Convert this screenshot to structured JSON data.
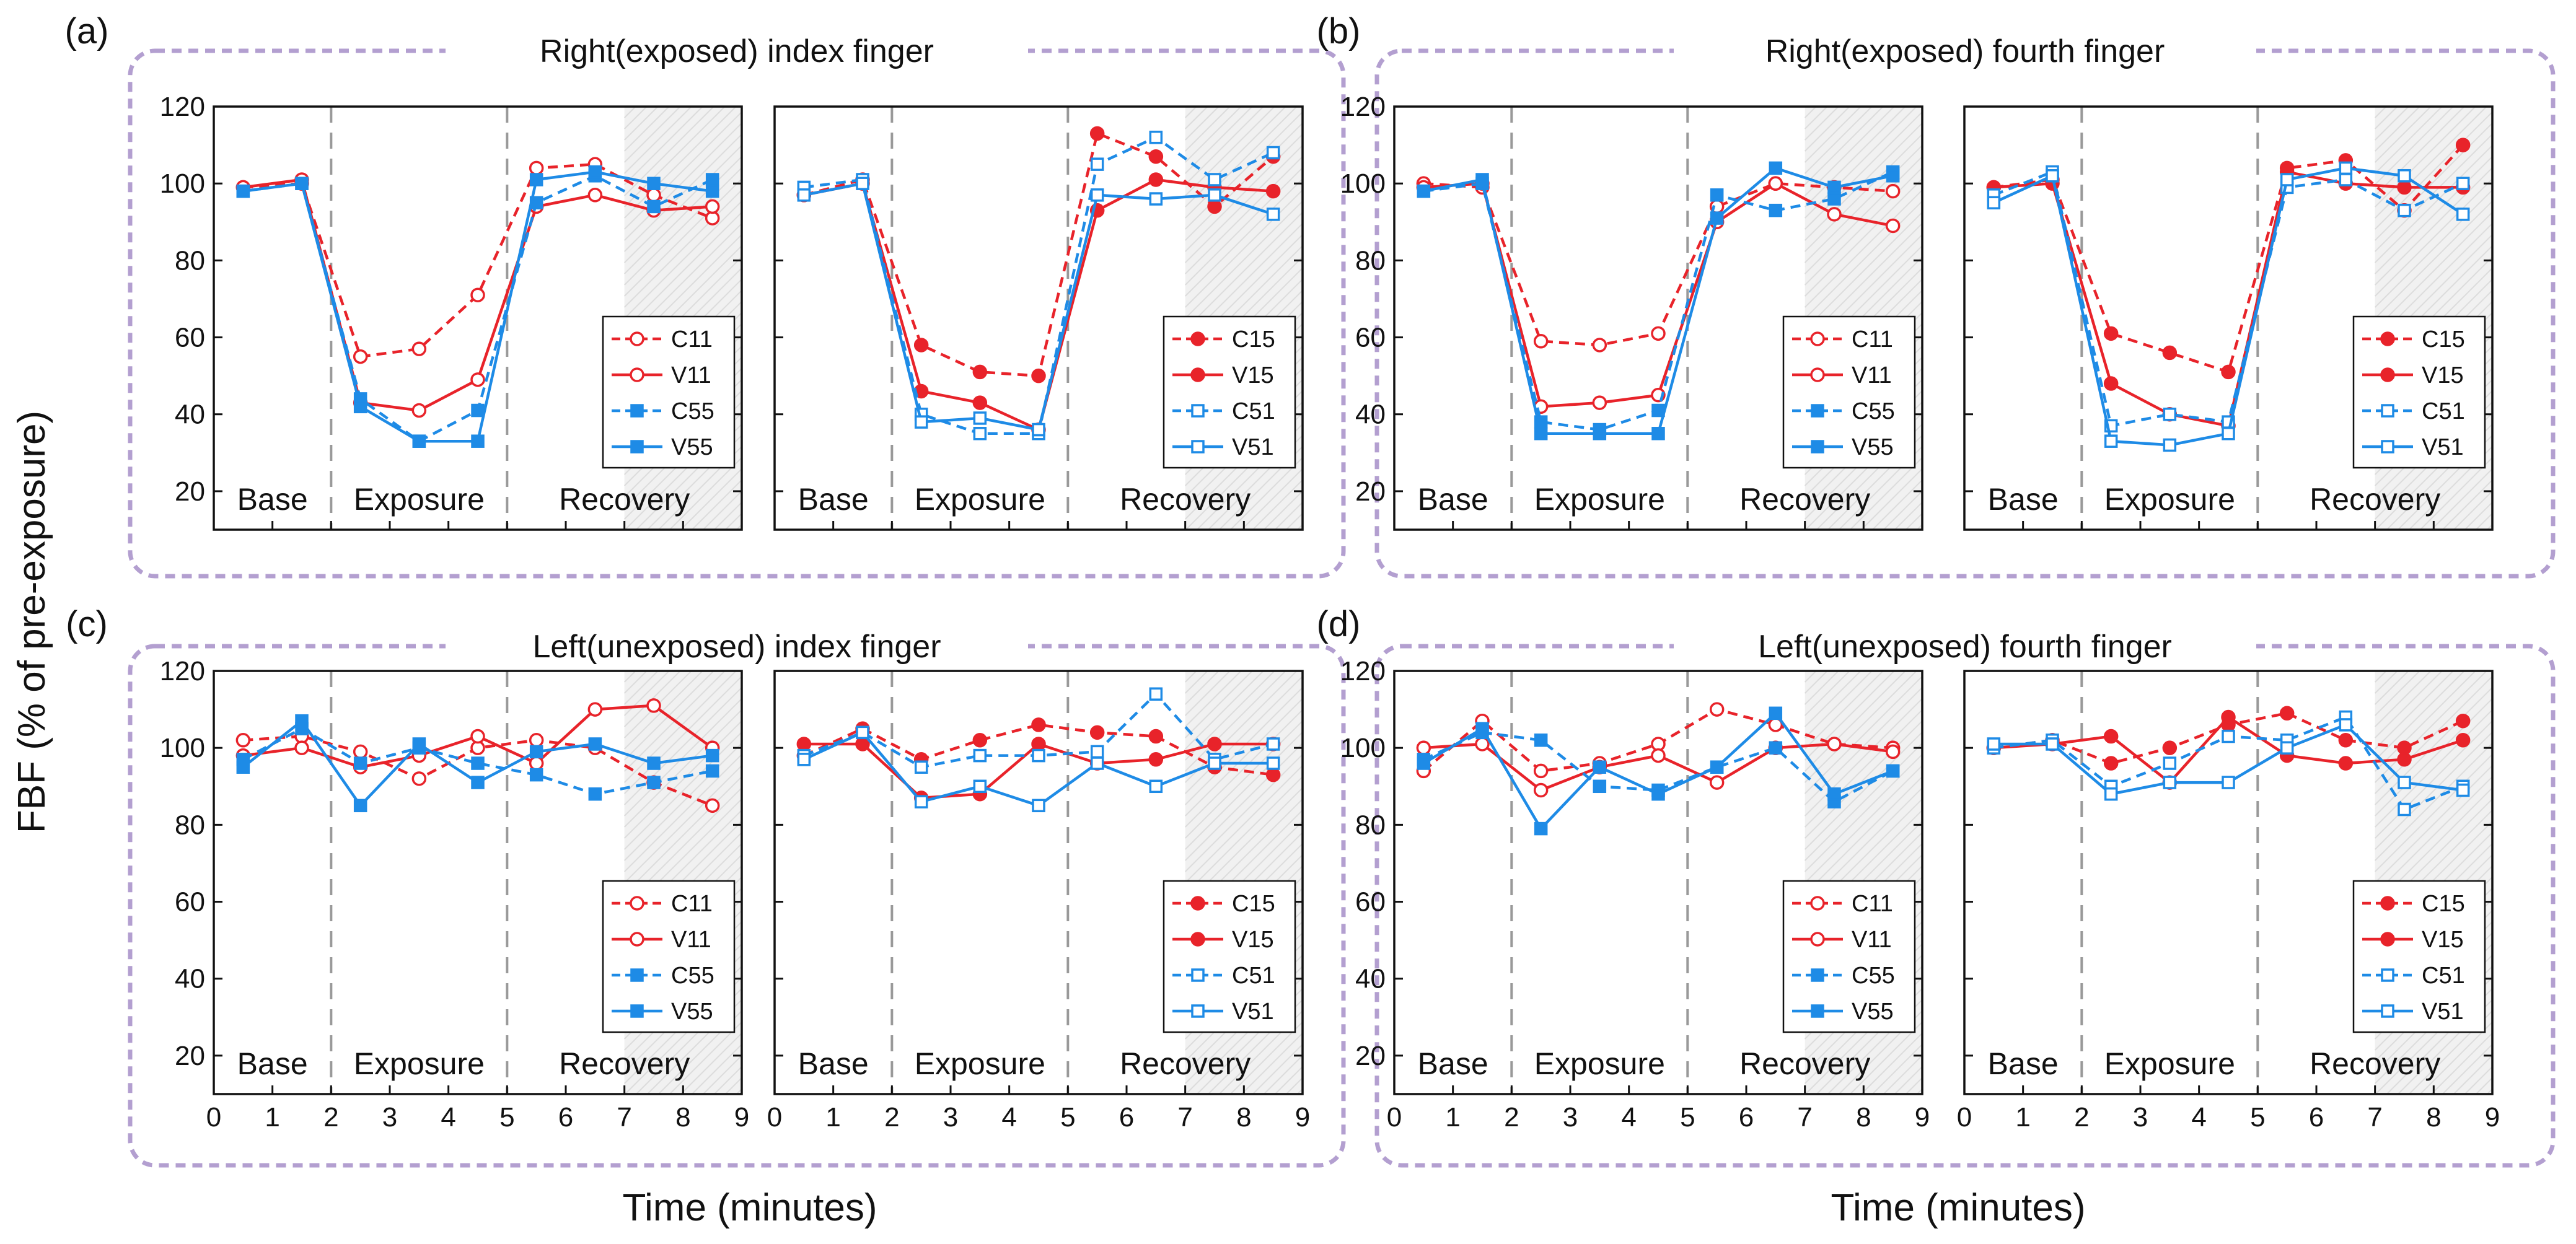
{
  "figure": {
    "ylabel": "FBF (% of pre-exposure)",
    "xlabel": "Time (minutes)",
    "phases": [
      "Base",
      "Exposure",
      "Recovery"
    ],
    "colors": {
      "red": "#e8232a",
      "blue": "#1e8be6",
      "frame": "#b39fd0",
      "divider": "#999999"
    }
  },
  "chart_data": [
    {
      "type": "line",
      "panel": "a",
      "title": "Right(exposed) index finger",
      "side": "left",
      "xlabel": "Time (minutes)",
      "ylabel": "FBF (% of pre-exposure)",
      "xlim": [
        0,
        9
      ],
      "ylim": [
        10,
        120
      ],
      "xticks": [
        0,
        1,
        2,
        3,
        4,
        5,
        6,
        7,
        8,
        9
      ],
      "yticks": [
        20,
        40,
        60,
        80,
        100,
        120
      ],
      "phase_dividers": [
        2,
        5
      ],
      "shaded_region": [
        7,
        9
      ],
      "legend": "lower-right",
      "x": [
        0.5,
        1.5,
        2.5,
        3.5,
        4.5,
        5.5,
        6.5,
        7.5,
        8.5
      ],
      "series": [
        {
          "name": "C11",
          "color": "red",
          "dashed": true,
          "marker": "circle",
          "fill": false,
          "values": [
            99,
            100,
            55,
            57,
            71,
            104,
            105,
            97,
            91
          ]
        },
        {
          "name": "V11",
          "color": "red",
          "dashed": false,
          "marker": "circle",
          "fill": false,
          "values": [
            99,
            101,
            43,
            41,
            49,
            94,
            97,
            93,
            94
          ]
        },
        {
          "name": "C55",
          "color": "blue",
          "dashed": true,
          "marker": "square",
          "fill": true,
          "values": [
            98,
            100,
            44,
            33,
            41,
            95,
            102,
            94,
            101
          ]
        },
        {
          "name": "V55",
          "color": "blue",
          "dashed": false,
          "marker": "square",
          "fill": true,
          "values": [
            98,
            100,
            42,
            33,
            33,
            101,
            103,
            100,
            98
          ]
        }
      ]
    },
    {
      "type": "line",
      "panel": "a",
      "title": "Right(exposed) index finger",
      "side": "right",
      "xlabel": "Time (minutes)",
      "ylabel": "FBF (% of pre-exposure)",
      "xlim": [
        0,
        9
      ],
      "ylim": [
        10,
        120
      ],
      "xticks": [
        0,
        1,
        2,
        3,
        4,
        5,
        6,
        7,
        8,
        9
      ],
      "yticks": [
        20,
        40,
        60,
        80,
        100,
        120
      ],
      "phase_dividers": [
        2,
        5
      ],
      "shaded_region": [
        7,
        9
      ],
      "legend": "lower-right",
      "x": [
        0.5,
        1.5,
        2.5,
        3.5,
        4.5,
        5.5,
        6.5,
        7.5,
        8.5
      ],
      "series": [
        {
          "name": "C15",
          "color": "red",
          "dashed": true,
          "marker": "circle",
          "fill": true,
          "values": [
            97,
            101,
            58,
            51,
            50,
            113,
            107,
            94,
            107
          ]
        },
        {
          "name": "V15",
          "color": "red",
          "dashed": false,
          "marker": "circle",
          "fill": true,
          "values": [
            97,
            100,
            46,
            43,
            36,
            93,
            101,
            99,
            98
          ]
        },
        {
          "name": "C51",
          "color": "blue",
          "dashed": true,
          "marker": "square",
          "fill": false,
          "values": [
            99,
            101,
            40,
            35,
            35,
            105,
            112,
            101,
            108
          ]
        },
        {
          "name": "V51",
          "color": "blue",
          "dashed": false,
          "marker": "square",
          "fill": false,
          "values": [
            97,
            100,
            38,
            39,
            36,
            97,
            96,
            97,
            92
          ]
        }
      ]
    },
    {
      "type": "line",
      "panel": "b",
      "title": "Right(exposed) fourth finger",
      "side": "left",
      "xlabel": "Time (minutes)",
      "ylabel": "FBF (% of pre-exposure)",
      "xlim": [
        0,
        9
      ],
      "ylim": [
        10,
        120
      ],
      "xticks": [
        0,
        1,
        2,
        3,
        4,
        5,
        6,
        7,
        8,
        9
      ],
      "yticks": [
        20,
        40,
        60,
        80,
        100,
        120
      ],
      "phase_dividers": [
        2,
        5
      ],
      "shaded_region": [
        7,
        9
      ],
      "legend": "lower-right",
      "x": [
        0.5,
        1.5,
        2.5,
        3.5,
        4.5,
        5.5,
        6.5,
        7.5,
        8.5
      ],
      "series": [
        {
          "name": "C11",
          "color": "red",
          "dashed": true,
          "marker": "circle",
          "fill": false,
          "values": [
            100,
            99,
            59,
            58,
            61,
            94,
            100,
            99,
            98
          ]
        },
        {
          "name": "V11",
          "color": "red",
          "dashed": false,
          "marker": "circle",
          "fill": false,
          "values": [
            99,
            100,
            42,
            43,
            45,
            90,
            100,
            92,
            89
          ]
        },
        {
          "name": "C55",
          "color": "blue",
          "dashed": true,
          "marker": "square",
          "fill": true,
          "values": [
            98,
            100,
            38,
            36,
            41,
            97,
            93,
            96,
            103
          ]
        },
        {
          "name": "V55",
          "color": "blue",
          "dashed": false,
          "marker": "square",
          "fill": true,
          "values": [
            98,
            101,
            35,
            35,
            35,
            91,
            104,
            99,
            102
          ]
        }
      ]
    },
    {
      "type": "line",
      "panel": "b",
      "title": "Right(exposed) fourth finger",
      "side": "right",
      "xlabel": "Time (minutes)",
      "ylabel": "FBF (% of pre-exposure)",
      "xlim": [
        0,
        9
      ],
      "ylim": [
        10,
        120
      ],
      "xticks": [
        0,
        1,
        2,
        3,
        4,
        5,
        6,
        7,
        8,
        9
      ],
      "yticks": [
        20,
        40,
        60,
        80,
        100,
        120
      ],
      "phase_dividers": [
        2,
        5
      ],
      "shaded_region": [
        7,
        9
      ],
      "legend": "lower-right",
      "x": [
        0.5,
        1.5,
        2.5,
        3.5,
        4.5,
        5.5,
        6.5,
        7.5,
        8.5
      ],
      "series": [
        {
          "name": "C15",
          "color": "red",
          "dashed": true,
          "marker": "circle",
          "fill": true,
          "values": [
            99,
            101,
            61,
            56,
            51,
            104,
            106,
            93,
            110
          ]
        },
        {
          "name": "V15",
          "color": "red",
          "dashed": false,
          "marker": "circle",
          "fill": true,
          "values": [
            99,
            100,
            48,
            40,
            37,
            103,
            100,
            99,
            99
          ]
        },
        {
          "name": "C51",
          "color": "blue",
          "dashed": true,
          "marker": "square",
          "fill": false,
          "values": [
            97,
            103,
            37,
            40,
            38,
            99,
            101,
            93,
            100
          ]
        },
        {
          "name": "V51",
          "color": "blue",
          "dashed": false,
          "marker": "square",
          "fill": false,
          "values": [
            95,
            102,
            33,
            32,
            35,
            101,
            104,
            102,
            92
          ]
        }
      ]
    },
    {
      "type": "line",
      "panel": "c",
      "title": "Left(unexposed) index finger",
      "side": "left",
      "xlabel": "Time (minutes)",
      "ylabel": "FBF (% of pre-exposure)",
      "xlim": [
        0,
        9
      ],
      "ylim": [
        10,
        120
      ],
      "xticks": [
        0,
        1,
        2,
        3,
        4,
        5,
        6,
        7,
        8,
        9
      ],
      "yticks": [
        20,
        40,
        60,
        80,
        100,
        120
      ],
      "phase_dividers": [
        2,
        5
      ],
      "shaded_region": [
        7,
        9
      ],
      "legend": "lower-right",
      "x": [
        0.5,
        1.5,
        2.5,
        3.5,
        4.5,
        5.5,
        6.5,
        7.5,
        8.5
      ],
      "series": [
        {
          "name": "C11",
          "color": "red",
          "dashed": true,
          "marker": "circle",
          "fill": false,
          "values": [
            102,
            103,
            99,
            92,
            100,
            102,
            100,
            91,
            85
          ]
        },
        {
          "name": "V11",
          "color": "red",
          "dashed": false,
          "marker": "circle",
          "fill": false,
          "values": [
            98,
            100,
            95,
            98,
            103,
            96,
            110,
            111,
            100
          ]
        },
        {
          "name": "C55",
          "color": "blue",
          "dashed": true,
          "marker": "square",
          "fill": true,
          "values": [
            97,
            105,
            96,
            100,
            96,
            93,
            88,
            91,
            94
          ]
        },
        {
          "name": "V55",
          "color": "blue",
          "dashed": false,
          "marker": "square",
          "fill": true,
          "values": [
            95,
            107,
            85,
            101,
            91,
            99,
            101,
            96,
            98
          ]
        }
      ]
    },
    {
      "type": "line",
      "panel": "c",
      "title": "Left(unexposed) index finger",
      "side": "right",
      "xlabel": "Time (minutes)",
      "ylabel": "FBF (% of pre-exposure)",
      "xlim": [
        0,
        9
      ],
      "ylim": [
        10,
        120
      ],
      "xticks": [
        0,
        1,
        2,
        3,
        4,
        5,
        6,
        7,
        8,
        9
      ],
      "yticks": [
        20,
        40,
        60,
        80,
        100,
        120
      ],
      "phase_dividers": [
        2,
        5
      ],
      "shaded_region": [
        7,
        9
      ],
      "legend": "lower-right",
      "x": [
        0.5,
        1.5,
        2.5,
        3.5,
        4.5,
        5.5,
        6.5,
        7.5,
        8.5
      ],
      "series": [
        {
          "name": "C15",
          "color": "red",
          "dashed": true,
          "marker": "circle",
          "fill": true,
          "values": [
            98,
            105,
            97,
            102,
            106,
            104,
            103,
            95,
            93
          ]
        },
        {
          "name": "V15",
          "color": "red",
          "dashed": false,
          "marker": "circle",
          "fill": true,
          "values": [
            101,
            101,
            87,
            88,
            101,
            96,
            97,
            101,
            101
          ]
        },
        {
          "name": "C51",
          "color": "blue",
          "dashed": true,
          "marker": "square",
          "fill": false,
          "values": [
            98,
            104,
            95,
            98,
            98,
            99,
            114,
            97,
            101
          ]
        },
        {
          "name": "V51",
          "color": "blue",
          "dashed": false,
          "marker": "square",
          "fill": false,
          "values": [
            97,
            104,
            86,
            90,
            85,
            96,
            90,
            96,
            96
          ]
        }
      ]
    },
    {
      "type": "line",
      "panel": "d",
      "title": "Left(unexposed) fourth finger",
      "side": "left",
      "xlabel": "Time (minutes)",
      "ylabel": "FBF (% of pre-exposure)",
      "xlim": [
        0,
        9
      ],
      "ylim": [
        10,
        120
      ],
      "xticks": [
        0,
        1,
        2,
        3,
        4,
        5,
        6,
        7,
        8,
        9
      ],
      "yticks": [
        20,
        40,
        60,
        80,
        100,
        120
      ],
      "phase_dividers": [
        2,
        5
      ],
      "shaded_region": [
        7,
        9
      ],
      "legend": "lower-right",
      "x": [
        0.5,
        1.5,
        2.5,
        3.5,
        4.5,
        5.5,
        6.5,
        7.5,
        8.5
      ],
      "series": [
        {
          "name": "C11",
          "color": "red",
          "dashed": true,
          "marker": "circle",
          "fill": false,
          "values": [
            94,
            107,
            94,
            96,
            101,
            110,
            106,
            101,
            100
          ]
        },
        {
          "name": "V11",
          "color": "red",
          "dashed": false,
          "marker": "circle",
          "fill": false,
          "values": [
            100,
            101,
            89,
            95,
            98,
            91,
            100,
            101,
            99
          ]
        },
        {
          "name": "C55",
          "color": "blue",
          "dashed": true,
          "marker": "square",
          "fill": true,
          "values": [
            97,
            104,
            102,
            90,
            89,
            95,
            100,
            86,
            94
          ]
        },
        {
          "name": "V55",
          "color": "blue",
          "dashed": false,
          "marker": "square",
          "fill": true,
          "values": [
            96,
            105,
            79,
            95,
            88,
            95,
            109,
            88,
            94
          ]
        }
      ]
    },
    {
      "type": "line",
      "panel": "d",
      "title": "Left(unexposed) fourth finger",
      "side": "right",
      "xlabel": "Time (minutes)",
      "ylabel": "FBF (% of pre-exposure)",
      "xlim": [
        0,
        9
      ],
      "ylim": [
        10,
        120
      ],
      "xticks": [
        0,
        1,
        2,
        3,
        4,
        5,
        6,
        7,
        8,
        9
      ],
      "yticks": [
        20,
        40,
        60,
        80,
        100,
        120
      ],
      "phase_dividers": [
        2,
        5
      ],
      "shaded_region": [
        7,
        9
      ],
      "legend": "lower-right",
      "x": [
        0.5,
        1.5,
        2.5,
        3.5,
        4.5,
        5.5,
        6.5,
        7.5,
        8.5
      ],
      "series": [
        {
          "name": "C15",
          "color": "red",
          "dashed": true,
          "marker": "circle",
          "fill": true,
          "values": [
            100,
            102,
            96,
            100,
            106,
            109,
            102,
            100,
            107
          ]
        },
        {
          "name": "V15",
          "color": "red",
          "dashed": false,
          "marker": "circle",
          "fill": true,
          "values": [
            100,
            101,
            103,
            91,
            108,
            98,
            96,
            97,
            102
          ]
        },
        {
          "name": "C51",
          "color": "blue",
          "dashed": true,
          "marker": "square",
          "fill": false,
          "values": [
            100,
            102,
            90,
            96,
            103,
            102,
            108,
            84,
            90
          ]
        },
        {
          "name": "V51",
          "color": "blue",
          "dashed": false,
          "marker": "square",
          "fill": false,
          "values": [
            101,
            101,
            88,
            91,
            91,
            100,
            106,
            91,
            89
          ]
        }
      ]
    }
  ]
}
